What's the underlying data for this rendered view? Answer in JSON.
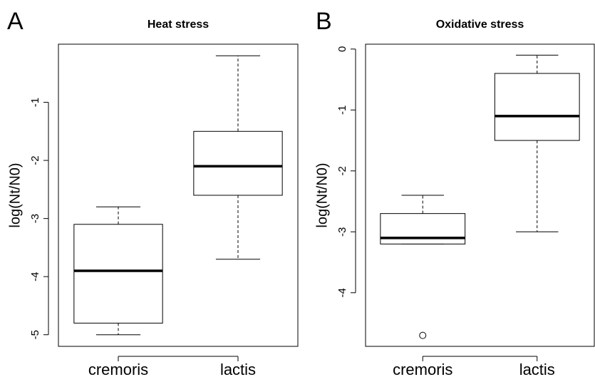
{
  "chart_data": [
    {
      "type": "box",
      "panel_label": "A",
      "title": "Heat stress",
      "ylabel": "log(Nt/N0)",
      "categories": [
        "cremoris",
        "lactis"
      ],
      "boxes": [
        {
          "min": -5.0,
          "q1": -4.8,
          "median": -3.9,
          "q3": -3.1,
          "max": -2.8,
          "outliers": []
        },
        {
          "min": -3.7,
          "q1": -2.6,
          "median": -2.1,
          "q3": -1.5,
          "max": -0.2,
          "outliers": []
        }
      ],
      "ylim": [
        -5.2,
        0
      ],
      "yticks": [
        -5,
        -4,
        -3,
        -2,
        -1
      ]
    },
    {
      "type": "box",
      "panel_label": "B",
      "title": "Oxidative stress",
      "ylabel": "log(Nt/N0)",
      "categories": [
        "cremoris",
        "lactis"
      ],
      "boxes": [
        {
          "min": -3.2,
          "q1": -3.2,
          "median": -3.1,
          "q3": -2.7,
          "max": -2.4,
          "outliers": [
            -4.7
          ]
        },
        {
          "min": -3.0,
          "q1": -1.5,
          "median": -1.1,
          "q3": -0.4,
          "max": -0.1,
          "outliers": []
        }
      ],
      "ylim": [
        -4.88,
        0.08
      ],
      "yticks": [
        -4,
        -3,
        -2,
        -1,
        0
      ]
    }
  ]
}
